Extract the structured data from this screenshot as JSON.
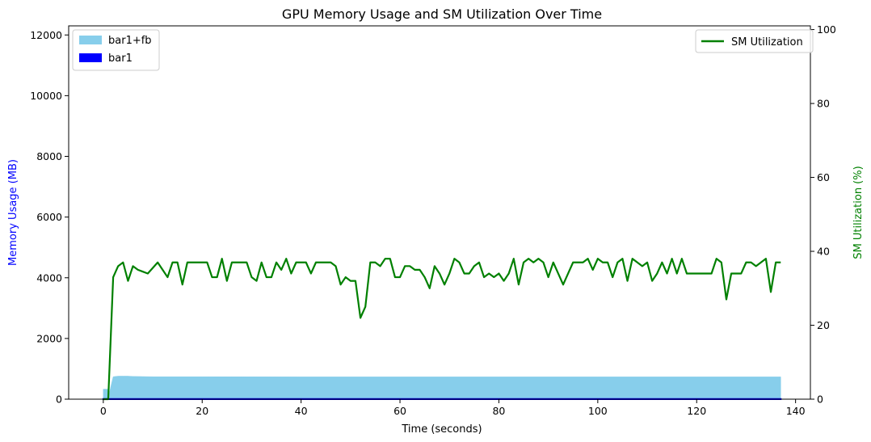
{
  "chart_data": {
    "type": "line",
    "title": "GPU Memory Usage and SM Utilization Over Time",
    "xlabel": "Time (seconds)",
    "ylabel_left": "Memory Usage (MB)",
    "ylabel_right": "SM Utilization (%)",
    "xlim": [
      -7,
      143
    ],
    "ylim_left": [
      0,
      12300
    ],
    "ylim_right": [
      0,
      101
    ],
    "x_ticks": [
      0,
      20,
      40,
      60,
      80,
      100,
      120,
      140
    ],
    "y_left_ticks": [
      0,
      2000,
      4000,
      6000,
      8000,
      10000,
      12000
    ],
    "y_right_ticks": [
      0,
      20,
      40,
      60,
      80,
      100
    ],
    "grid": false,
    "legend_left": {
      "placement": "upper-left",
      "entries": [
        "bar1+fb",
        "bar1"
      ]
    },
    "legend_right": {
      "placement": "upper-right",
      "entries": [
        "SM Utilization"
      ]
    },
    "colors": {
      "bar1_fb": "#87ceeb",
      "bar1": "#0000ff",
      "sm": "#008000",
      "left_label": "#0000ff",
      "right_label": "#008000"
    },
    "series": [
      {
        "name": "bar1+fb",
        "axis": "left",
        "kind": "area",
        "x": [
          0,
          0.9,
          1.0,
          1.5,
          2,
          3,
          4,
          5,
          6,
          8,
          10,
          20,
          40,
          60,
          80,
          100,
          120,
          137
        ],
        "values": [
          330,
          330,
          0,
          400,
          740,
          760,
          760,
          760,
          750,
          745,
          740,
          740,
          735,
          735,
          735,
          735,
          735,
          735
        ]
      },
      {
        "name": "bar1",
        "axis": "left",
        "kind": "area",
        "x": [
          0,
          137
        ],
        "values": [
          5,
          5
        ]
      },
      {
        "name": "SM Utilization",
        "axis": "right",
        "kind": "line",
        "x": [
          0,
          1,
          2,
          3,
          4,
          5,
          6,
          7,
          8,
          9,
          10,
          11,
          12,
          13,
          14,
          15,
          16,
          17,
          18,
          19,
          20,
          21,
          22,
          23,
          24,
          25,
          26,
          27,
          28,
          29,
          30,
          31,
          32,
          33,
          34,
          35,
          36,
          37,
          38,
          39,
          40,
          41,
          42,
          43,
          44,
          45,
          46,
          47,
          48,
          49,
          50,
          51,
          52,
          53,
          54,
          55,
          56,
          57,
          58,
          59,
          60,
          61,
          62,
          63,
          64,
          65,
          66,
          67,
          68,
          69,
          70,
          71,
          72,
          73,
          74,
          75,
          76,
          77,
          78,
          79,
          80,
          81,
          82,
          83,
          84,
          85,
          86,
          87,
          88,
          89,
          90,
          91,
          92,
          93,
          94,
          95,
          96,
          97,
          98,
          99,
          100,
          101,
          102,
          103,
          104,
          105,
          106,
          107,
          108,
          109,
          110,
          111,
          112,
          113,
          114,
          115,
          116,
          117,
          118,
          119,
          120,
          121,
          122,
          123,
          124,
          125,
          126,
          127,
          128,
          129,
          130,
          131,
          132,
          133,
          134,
          135,
          136,
          137
        ],
        "values": [
          0,
          0,
          33,
          36,
          37,
          32,
          36,
          35,
          34.5,
          34,
          35.5,
          37,
          35,
          33,
          37,
          37,
          31,
          37,
          37,
          37,
          37,
          37,
          33,
          33,
          38,
          32,
          37,
          37,
          37,
          37,
          33,
          32,
          37,
          33,
          33,
          37,
          35,
          38,
          34,
          37,
          37,
          37,
          34,
          37,
          37,
          37,
          37,
          36,
          31,
          33,
          32,
          32,
          22,
          25,
          37,
          37,
          36,
          38,
          38,
          33,
          33,
          36,
          36,
          35,
          35,
          33,
          30,
          36,
          34,
          31,
          34,
          38,
          37,
          34,
          34,
          36,
          37,
          33,
          34,
          33,
          34,
          32,
          34,
          38,
          31,
          37,
          38,
          37,
          38,
          37,
          33,
          37,
          34,
          31,
          34,
          37,
          37,
          37,
          38,
          35,
          38,
          37,
          37,
          33,
          37,
          38,
          32,
          38,
          37,
          36,
          37,
          32,
          34,
          37,
          34,
          38,
          34,
          38,
          34,
          34,
          34,
          34,
          34,
          34,
          38,
          37,
          27,
          34,
          34,
          34,
          37,
          37,
          36,
          37,
          38,
          29,
          37,
          37
        ]
      }
    ]
  }
}
